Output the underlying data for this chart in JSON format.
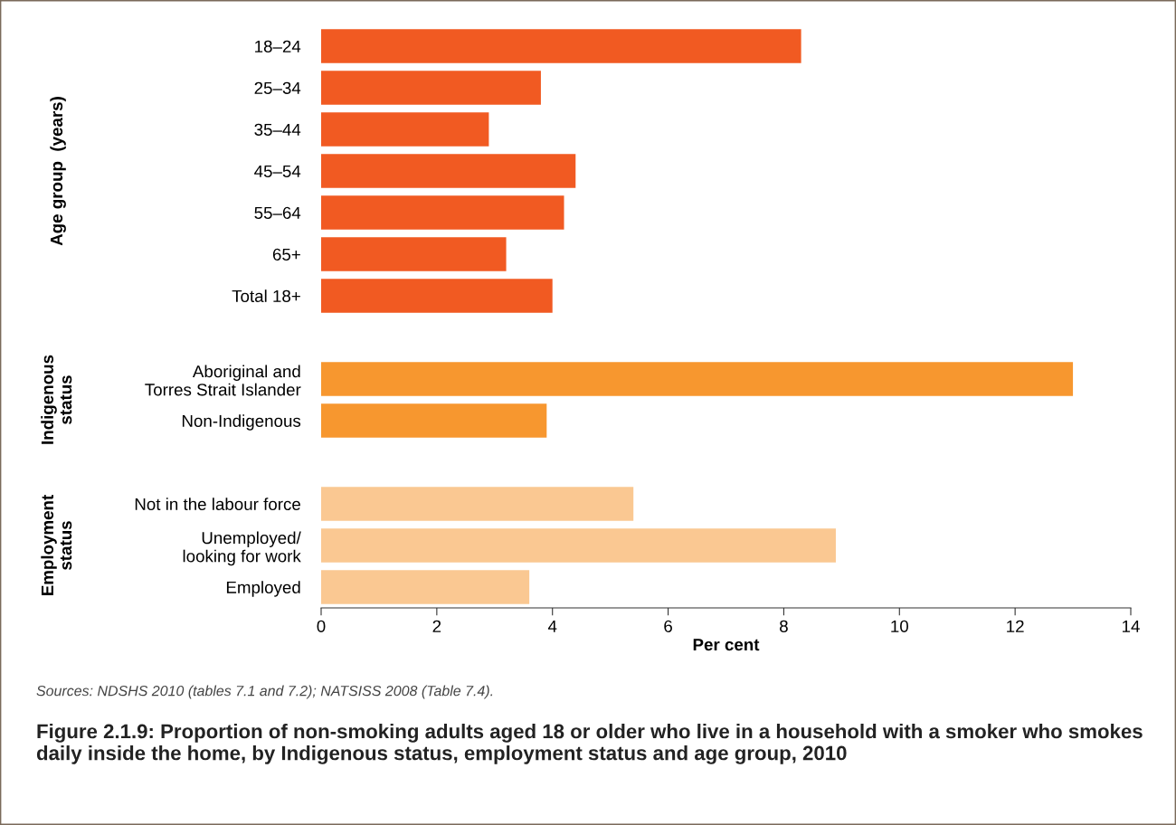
{
  "chart_data": {
    "type": "bar",
    "orientation": "horizontal",
    "title": "Figure 2.1.9: Proportion of non-smoking adults aged 18 or older who live in a household with a smoker who smokes daily inside the home, by Indigenous status, employment status and age group, 2010",
    "xlabel": "Per cent",
    "categories": [
      "18–24",
      "25–34",
      "35–44",
      "45–54",
      "55–64",
      "65+",
      "Total 18+",
      null,
      "Aboriginal and\nTorres Strait Islander",
      "Non-Indigenous",
      null,
      "Not in the labour force",
      "Unemployed/\nlooking for work",
      "Employed"
    ],
    "values": [
      8.3,
      3.8,
      2.9,
      4.4,
      4.2,
      3.2,
      4.0,
      null,
      13.0,
      3.9,
      null,
      5.4,
      8.9,
      3.6
    ],
    "colors": [
      "#f15a22",
      "#f15a22",
      "#f15a22",
      "#f15a22",
      "#f15a22",
      "#f15a22",
      "#f15a22",
      null,
      "#f7972f",
      "#f7972f",
      null,
      "#fac892",
      "#fac892",
      "#fac892"
    ],
    "xlim": [
      0,
      14
    ],
    "xticks": [
      0,
      2,
      4,
      6,
      8,
      10,
      12,
      14
    ],
    "annotations": [
      "Age group  (years)",
      "Indigenous\nstatus",
      "Employment\nstatus",
      "Sources: NDSHS 2010 (tables 7.1 and 7.2); NATSISS 2008 (Table 7.4)."
    ],
    "grid": false,
    "legend": false
  }
}
